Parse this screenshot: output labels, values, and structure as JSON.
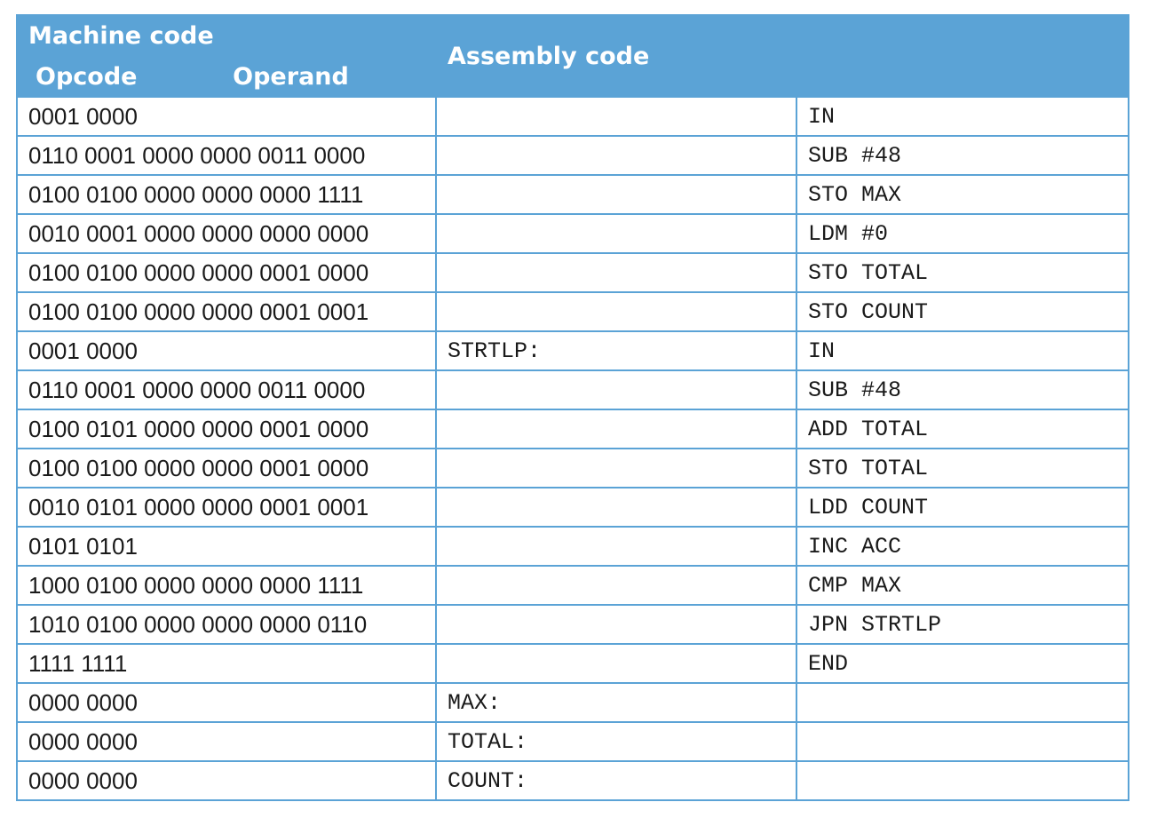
{
  "header": {
    "machine_code": "Machine code",
    "opcode": "Opcode",
    "operand": "Operand",
    "assembly_code": "Assembly code"
  },
  "rows": [
    {
      "machine": "0001 0000",
      "label": "",
      "instr": "IN"
    },
    {
      "machine": "0110 0001 0000 0000 0011 0000",
      "label": "",
      "instr": "SUB #48"
    },
    {
      "machine": "0100 0100 0000 0000 0000 1111",
      "label": "",
      "instr": "STO MAX"
    },
    {
      "machine": "0010 0001 0000 0000 0000 0000",
      "label": "",
      "instr": "LDM #0"
    },
    {
      "machine": "0100 0100 0000 0000 0001 0000",
      "label": "",
      "instr": "STO TOTAL"
    },
    {
      "machine": "0100 0100 0000 0000 0001 0001",
      "label": "",
      "instr": "STO COUNT"
    },
    {
      "machine": "0001 0000",
      "label": "STRTLP:",
      "instr": "IN"
    },
    {
      "machine": "0110 0001 0000 0000 0011 0000",
      "label": "",
      "instr": "SUB #48"
    },
    {
      "machine": "0100 0101 0000 0000 0001 0000",
      "label": "",
      "instr": "ADD TOTAL"
    },
    {
      "machine": "0100 0100 0000 0000 0001 0000",
      "label": "",
      "instr": "STO TOTAL"
    },
    {
      "machine": "0010 0101 0000 0000 0001 0001",
      "label": "",
      "instr": "LDD COUNT"
    },
    {
      "machine": "0101 0101",
      "label": "",
      "instr": "INC ACC"
    },
    {
      "machine": "1000 0100 0000 0000 0000 1111",
      "label": "",
      "instr": "CMP MAX"
    },
    {
      "machine": "1010 0100 0000 0000 0000 0110",
      "label": "",
      "instr": "JPN STRTLP"
    },
    {
      "machine": "1111 1111",
      "label": "",
      "instr": "END"
    },
    {
      "machine": "0000 0000",
      "label": "MAX:",
      "instr": ""
    },
    {
      "machine": "0000 0000",
      "label": "TOTAL:",
      "instr": ""
    },
    {
      "machine": "0000 0000",
      "label": "COUNT:",
      "instr": ""
    }
  ]
}
